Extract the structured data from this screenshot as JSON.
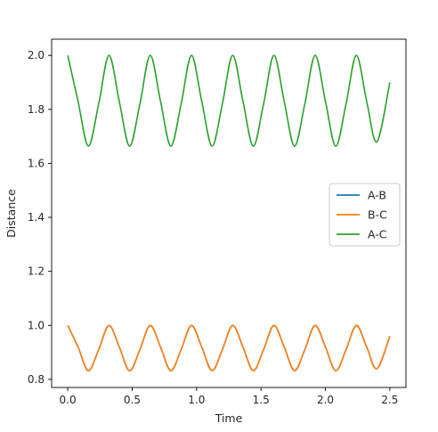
{
  "chart_data": {
    "type": "line",
    "title": "",
    "xlabel": "Time",
    "ylabel": "Distance",
    "xlim": [
      -0.125,
      2.625
    ],
    "ylim": [
      0.77,
      2.06
    ],
    "xticks": [
      0.0,
      0.5,
      1.0,
      1.5,
      2.0,
      2.5
    ],
    "xtick_labels": [
      "0.0",
      "0.5",
      "1.0",
      "1.5",
      "2.0",
      "2.5"
    ],
    "yticks": [
      0.8,
      1.0,
      1.2,
      1.4,
      1.6,
      1.8,
      2.0
    ],
    "ytick_labels": [
      "0.8",
      "1.0",
      "1.2",
      "1.4",
      "1.6",
      "1.8",
      "2.0"
    ],
    "grid": false,
    "legend": "center-right",
    "series": [
      {
        "name": "A-B",
        "color": "#1f77b4",
        "x": [
          0.0,
          0.08,
          0.16,
          0.24,
          0.32,
          0.4,
          0.48,
          0.56,
          0.64,
          0.72,
          0.8,
          0.88,
          0.96,
          1.04,
          1.12,
          1.2,
          1.28,
          1.36,
          1.44,
          1.52,
          1.6,
          1.68,
          1.76,
          1.84,
          1.92,
          2.0,
          2.08,
          2.16,
          2.24,
          2.32,
          2.4,
          2.5
        ],
        "y": [
          1.0,
          0.92,
          0.832,
          0.91,
          1.0,
          0.92,
          0.832,
          0.91,
          1.0,
          0.92,
          0.832,
          0.91,
          1.0,
          0.92,
          0.832,
          0.91,
          1.0,
          0.92,
          0.832,
          0.91,
          1.0,
          0.92,
          0.832,
          0.91,
          1.0,
          0.92,
          0.832,
          0.91,
          1.0,
          0.92,
          0.84,
          0.96
        ]
      },
      {
        "name": "B-C",
        "color": "#ff7f0e",
        "x": [
          0.0,
          0.08,
          0.16,
          0.24,
          0.32,
          0.4,
          0.48,
          0.56,
          0.64,
          0.72,
          0.8,
          0.88,
          0.96,
          1.04,
          1.12,
          1.2,
          1.28,
          1.36,
          1.44,
          1.52,
          1.6,
          1.68,
          1.76,
          1.84,
          1.92,
          2.0,
          2.08,
          2.16,
          2.24,
          2.32,
          2.4,
          2.5
        ],
        "y": [
          1.0,
          0.92,
          0.832,
          0.91,
          1.0,
          0.92,
          0.832,
          0.91,
          1.0,
          0.92,
          0.832,
          0.91,
          1.0,
          0.92,
          0.832,
          0.91,
          1.0,
          0.92,
          0.832,
          0.91,
          1.0,
          0.92,
          0.832,
          0.91,
          1.0,
          0.92,
          0.832,
          0.91,
          1.0,
          0.92,
          0.84,
          0.96
        ]
      },
      {
        "name": "A-C",
        "color": "#2ca02c",
        "x": [
          0.0,
          0.08,
          0.16,
          0.24,
          0.32,
          0.4,
          0.48,
          0.56,
          0.64,
          0.72,
          0.8,
          0.88,
          0.96,
          1.04,
          1.12,
          1.2,
          1.28,
          1.36,
          1.44,
          1.52,
          1.6,
          1.68,
          1.76,
          1.84,
          1.92,
          2.0,
          2.08,
          2.16,
          2.24,
          2.32,
          2.4,
          2.5
        ],
        "y": [
          2.0,
          1.83,
          1.664,
          1.82,
          2.0,
          1.83,
          1.664,
          1.82,
          2.0,
          1.83,
          1.664,
          1.82,
          2.0,
          1.83,
          1.664,
          1.82,
          2.0,
          1.83,
          1.664,
          1.82,
          2.0,
          1.83,
          1.664,
          1.82,
          2.0,
          1.83,
          1.664,
          1.82,
          2.0,
          1.83,
          1.68,
          1.9
        ]
      }
    ]
  }
}
